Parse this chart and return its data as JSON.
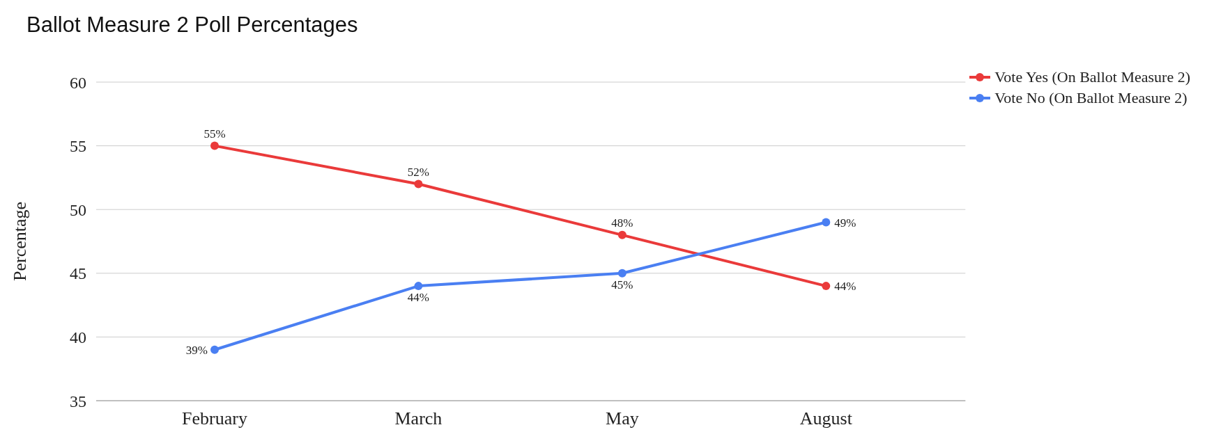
{
  "chart_data": {
    "type": "line",
    "title": "Ballot Measure 2 Poll Percentages",
    "ylabel": "Percentage",
    "categories": [
      "February",
      "March",
      "May",
      "August"
    ],
    "series": [
      {
        "name": "Vote Yes (On Ballot Measure 2)",
        "color": "#ea3a3a",
        "values": [
          55,
          52,
          48,
          44
        ],
        "value_labels": [
          "55%",
          "52%",
          "48%",
          "44%"
        ]
      },
      {
        "name": "Vote No (On Ballot Measure 2)",
        "color": "#4a7ff2",
        "values": [
          39,
          44,
          45,
          49
        ],
        "value_labels": [
          "39%",
          "44%",
          "45%",
          "49%"
        ]
      }
    ],
    "ylim": [
      35,
      60
    ],
    "yticks": [
      35,
      40,
      45,
      50,
      55,
      60
    ],
    "grid": "y",
    "legend": "top right",
    "marker": "circle",
    "line_style": "solid"
  }
}
